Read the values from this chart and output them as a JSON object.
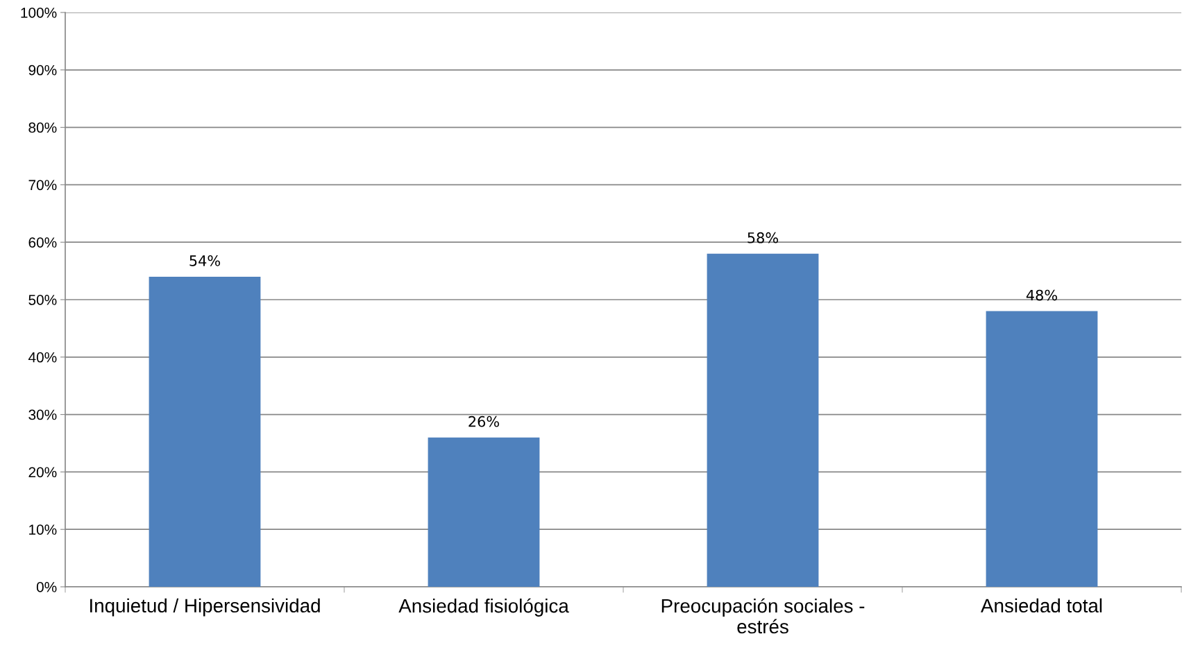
{
  "chart_data": {
    "type": "bar",
    "categories": [
      "Inquietud / Hipersensividad",
      "Ansiedad fisiológica",
      "Preocupación sociales -\nestrés",
      "Ansiedad total"
    ],
    "values": [
      54,
      26,
      58,
      48
    ],
    "value_labels": [
      "54%",
      "26%",
      "58%",
      "48%"
    ],
    "color": "#4f81bd",
    "ylim": [
      0,
      100
    ],
    "yticks": [
      {
        "value": 0,
        "label": "0%"
      },
      {
        "value": 10,
        "label": "10%"
      },
      {
        "value": 20,
        "label": "20%"
      },
      {
        "value": 30,
        "label": "30%"
      },
      {
        "value": 40,
        "label": "40%"
      },
      {
        "value": 50,
        "label": "50%"
      },
      {
        "value": 60,
        "label": "60%"
      },
      {
        "value": 70,
        "label": "70%"
      },
      {
        "value": 80,
        "label": "80%"
      },
      {
        "value": 90,
        "label": "90%"
      },
      {
        "value": 100,
        "label": "100%"
      }
    ],
    "grid": "y",
    "legend": false
  }
}
